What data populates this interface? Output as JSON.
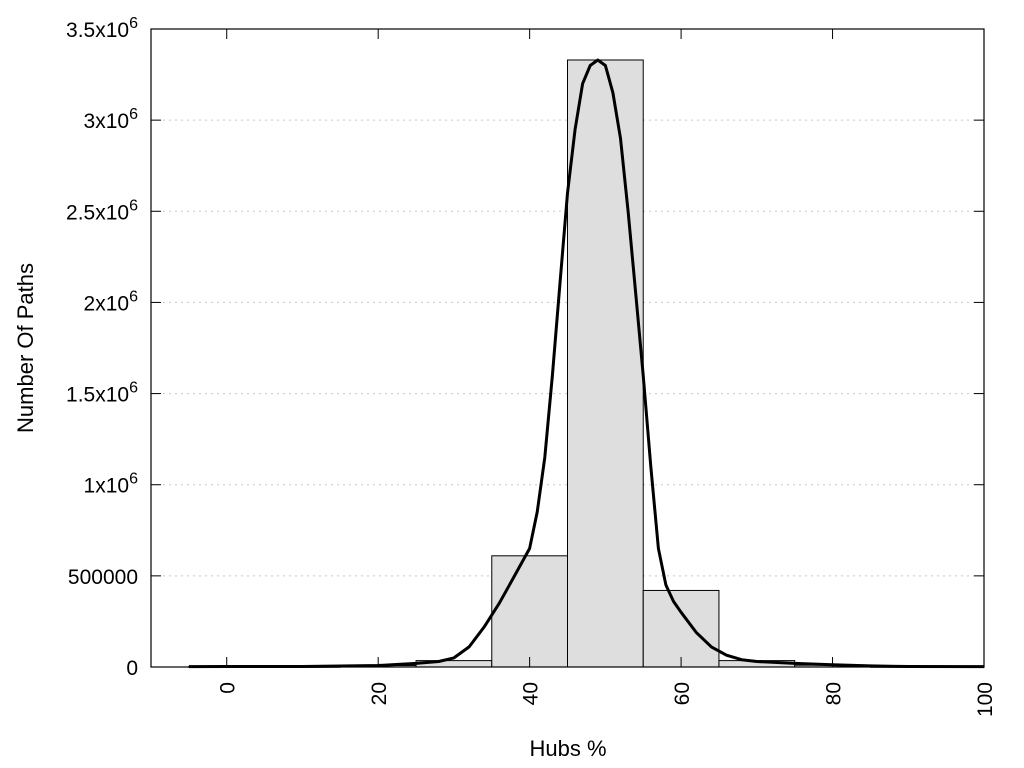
{
  "chart_data": {
    "type": "bar",
    "title": "",
    "xlabel": "Hubs %",
    "ylabel": "Number Of Paths",
    "xlim": [
      -10,
      100
    ],
    "ylim": [
      0,
      3500000
    ],
    "grid": true,
    "x_ticks": [
      {
        "value": 0,
        "label": "0"
      },
      {
        "value": 20,
        "label": "20"
      },
      {
        "value": 40,
        "label": "40"
      },
      {
        "value": 60,
        "label": "60"
      },
      {
        "value": 80,
        "label": "80"
      },
      {
        "value": 100,
        "label": "100"
      }
    ],
    "y_ticks": [
      {
        "value": 0,
        "base": "0",
        "exp": ""
      },
      {
        "value": 500000,
        "base": "500000",
        "exp": ""
      },
      {
        "value": 1000000,
        "base": "1x10",
        "exp": "6"
      },
      {
        "value": 1500000,
        "base": "1.5x10",
        "exp": "6"
      },
      {
        "value": 2000000,
        "base": "2x10",
        "exp": "6"
      },
      {
        "value": 2500000,
        "base": "2.5x10",
        "exp": "6"
      },
      {
        "value": 3000000,
        "base": "3x10",
        "exp": "6"
      },
      {
        "value": 3500000,
        "base": "3.5x10",
        "exp": "6"
      }
    ],
    "bars": [
      {
        "x0": -5,
        "x1": 5,
        "value": 3000
      },
      {
        "x0": 5,
        "x1": 15,
        "value": 3000
      },
      {
        "x0": 15,
        "x1": 25,
        "value": 8000
      },
      {
        "x0": 25,
        "x1": 35,
        "value": 35000
      },
      {
        "x0": 35,
        "x1": 45,
        "value": 610000
      },
      {
        "x0": 45,
        "x1": 55,
        "value": 3330000
      },
      {
        "x0": 55,
        "x1": 65,
        "value": 420000
      },
      {
        "x0": 65,
        "x1": 75,
        "value": 35000
      },
      {
        "x0": 75,
        "x1": 85,
        "value": 10000
      },
      {
        "x0": 85,
        "x1": 95,
        "value": 3000
      },
      {
        "x0": 95,
        "x1": 100,
        "value": 3000
      }
    ],
    "curve": {
      "x": [
        -5,
        0,
        10,
        20,
        25,
        28,
        30,
        32,
        34,
        36,
        38,
        40,
        41,
        42,
        43,
        44,
        45,
        46,
        47,
        48,
        49,
        50,
        51,
        52,
        53,
        54,
        55,
        56,
        57,
        58,
        59,
        60,
        62,
        64,
        66,
        68,
        70,
        75,
        80,
        85,
        90,
        100
      ],
      "y": [
        2000,
        3000,
        3000,
        8000,
        20000,
        30000,
        50000,
        110000,
        220000,
        350000,
        500000,
        650000,
        850000,
        1150000,
        1600000,
        2100000,
        2600000,
        2950000,
        3200000,
        3300000,
        3330000,
        3300000,
        3150000,
        2900000,
        2500000,
        2050000,
        1600000,
        1100000,
        650000,
        450000,
        360000,
        300000,
        190000,
        110000,
        65000,
        40000,
        30000,
        20000,
        12000,
        6000,
        3000,
        2000
      ]
    },
    "colors": {
      "bar_fill": "#dedede",
      "bar_stroke": "#000000",
      "curve": "#000000",
      "grid": "#c8c8c8"
    }
  }
}
